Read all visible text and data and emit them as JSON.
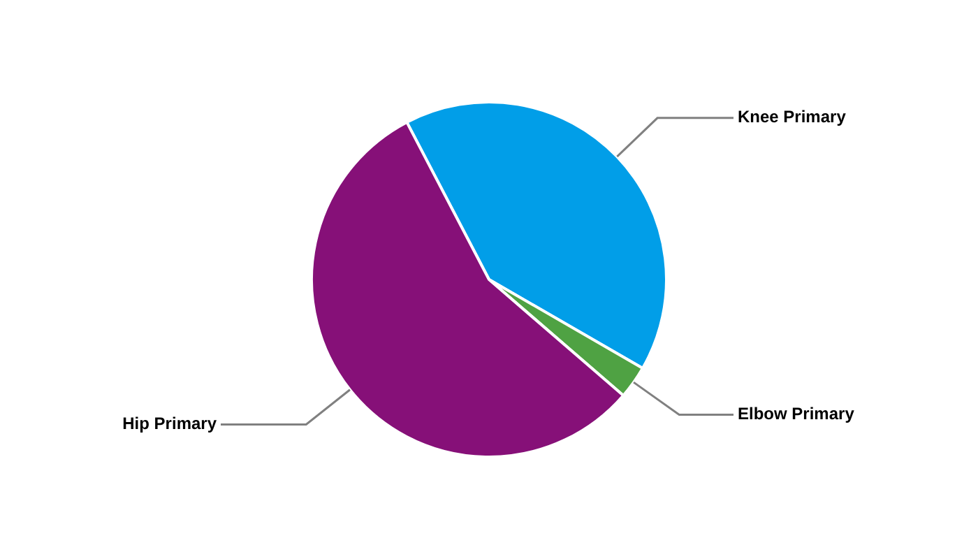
{
  "chart_data": {
    "type": "pie",
    "categories": [
      "Knee Primary",
      "Elbow Primary",
      "Hip Primary"
    ],
    "values": [
      41,
      3,
      56
    ],
    "colors": [
      "#019ee8",
      "#4fa243",
      "#861078"
    ],
    "legend": false
  }
}
